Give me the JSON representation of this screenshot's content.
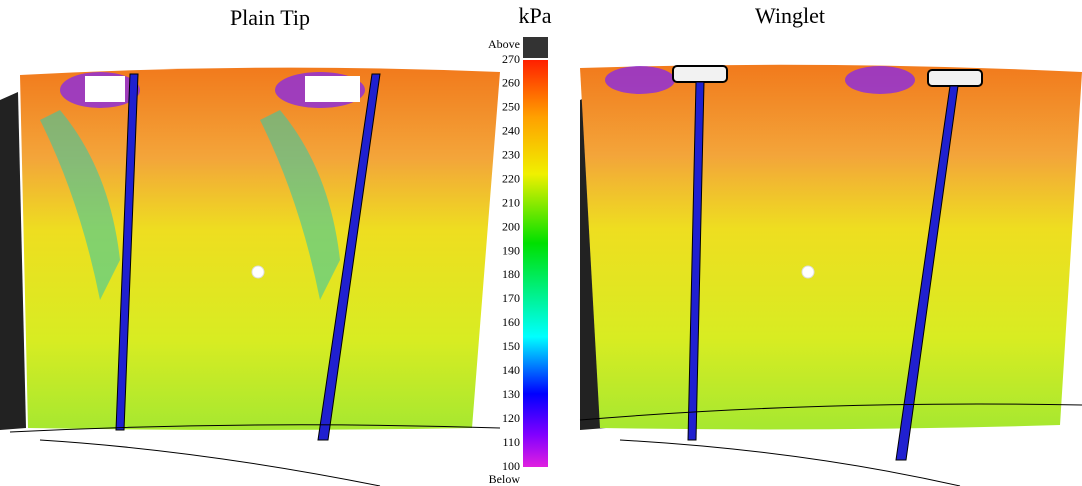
{
  "panels": [
    {
      "title": "Plain Tip"
    },
    {
      "title": "Winglet"
    }
  ],
  "colorbar": {
    "unit": "kPa",
    "above": "Above",
    "below": "Below",
    "range": [
      100,
      270
    ],
    "ticks": [
      100,
      110,
      120,
      130,
      140,
      150,
      160,
      170,
      180,
      190,
      200,
      210,
      220,
      230,
      240,
      250,
      260,
      270
    ]
  }
}
